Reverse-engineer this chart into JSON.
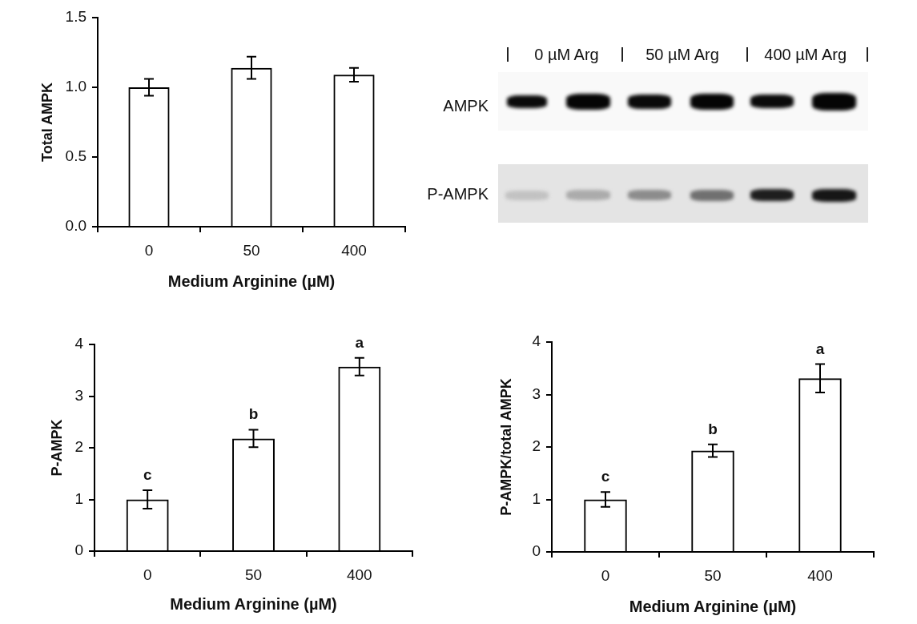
{
  "chart_data": [
    {
      "type": "bar",
      "categories": [
        "0",
        "50",
        "400"
      ],
      "values": [
        1.0,
        1.14,
        1.09
      ],
      "errors": [
        0.06,
        0.08,
        0.05
      ],
      "color": "#000000",
      "xlabel": "Medium Arginine (µM)",
      "ylabel": "Total AMPK",
      "ylim": [
        0,
        1.5
      ],
      "yticks": [
        {
          "value": 0,
          "label": "0.0"
        },
        0.5,
        {
          "value": 1,
          "label": "1.0"
        },
        1.5
      ]
    },
    {
      "type": "other",
      "annotations": [
        "0 µM Arg",
        "50 µM Arg",
        "400 µM Arg",
        "AMPK",
        "P-AMPK"
      ]
    },
    {
      "type": "bar",
      "categories": [
        "0",
        "50",
        "400"
      ],
      "values": [
        1.0,
        2.18,
        3.57
      ],
      "errors": [
        0.18,
        0.17,
        0.17
      ],
      "color": "#000000",
      "xlabel": "Medium Arginine (µM)",
      "ylabel": "P-AMPK",
      "ylim": [
        0,
        4
      ],
      "yticks": [
        0,
        1,
        2,
        3,
        4
      ],
      "annotations": [
        "c",
        "b",
        "a"
      ]
    },
    {
      "type": "bar",
      "categories": [
        "0",
        "50",
        "400"
      ],
      "values": [
        1.0,
        1.93,
        3.31
      ],
      "errors": [
        0.14,
        0.12,
        0.27
      ],
      "color": "#000000",
      "xlabel": "Medium Arginine (µM)",
      "ylabel": "P-AMPK/total AMPK",
      "ylim": [
        0,
        4
      ],
      "yticks": [
        0,
        1,
        2,
        3,
        4
      ],
      "annotations": [
        "c",
        "b",
        "a"
      ]
    }
  ]
}
